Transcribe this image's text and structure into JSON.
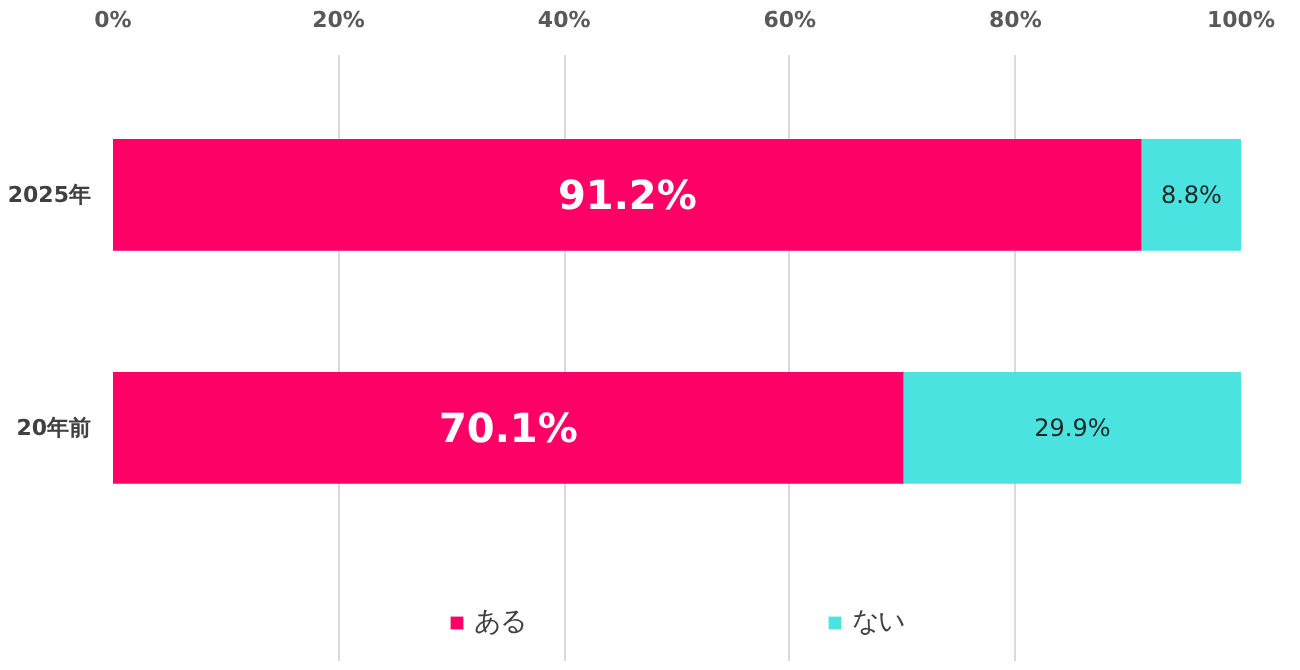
{
  "chart_data": {
    "type": "bar",
    "orientation": "horizontal",
    "stacked": true,
    "categories": [
      "2025年",
      "20年前"
    ],
    "series": [
      {
        "name": "ある",
        "color": "#ff0066",
        "values": [
          91.2,
          70.1
        ],
        "value_labels": [
          "91.2%",
          "70.1%"
        ]
      },
      {
        "name": "ない",
        "color": "#4ae3e0",
        "values": [
          8.8,
          29.9
        ],
        "value_labels": [
          "8.8%",
          "29.9%"
        ]
      }
    ],
    "xlim": [
      0,
      100
    ],
    "xticks": [
      {
        "value": 0,
        "label": "0%"
      },
      {
        "value": 20,
        "label": "20%"
      },
      {
        "value": 40,
        "label": "40%"
      },
      {
        "value": 60,
        "label": "60%"
      },
      {
        "value": 80,
        "label": "80%"
      },
      {
        "value": 100,
        "label": "100%"
      }
    ],
    "grid": "x",
    "legend": "bottom"
  }
}
